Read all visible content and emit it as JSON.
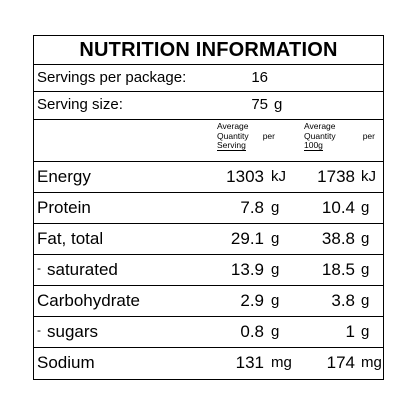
{
  "title": "NUTRITION INFORMATION",
  "servings_per_package": {
    "label": "Servings per package:",
    "value": "16"
  },
  "serving_size": {
    "label": "Serving size:",
    "value": "75",
    "unit": "g"
  },
  "columns": {
    "per_serving": {
      "line1": "Average",
      "line2": "Quantity",
      "per": "per",
      "line3": "Serving"
    },
    "per_100g": {
      "line1": "Average",
      "line2": "Quantity",
      "per": "per",
      "line3": "100g"
    }
  },
  "rows": [
    {
      "label": "Energy",
      "sub": false,
      "serving": "1303",
      "serving_unit": "kJ",
      "per100": "1738",
      "per100_unit": "kJ"
    },
    {
      "label": "Protein",
      "sub": false,
      "serving": "7.8",
      "serving_unit": "g",
      "per100": "10.4",
      "per100_unit": "g"
    },
    {
      "label": "Fat, total",
      "sub": false,
      "serving": "29.1",
      "serving_unit": "g",
      "per100": "38.8",
      "per100_unit": "g"
    },
    {
      "label": "saturated",
      "sub": true,
      "serving": "13.9",
      "serving_unit": "g",
      "per100": "18.5",
      "per100_unit": "g"
    },
    {
      "label": "Carbohydrate",
      "sub": false,
      "serving": "2.9",
      "serving_unit": "g",
      "per100": "3.8",
      "per100_unit": "g"
    },
    {
      "label": "sugars",
      "sub": true,
      "serving": "0.8",
      "serving_unit": "g",
      "per100": "1",
      "per100_unit": "g"
    },
    {
      "label": "Sodium",
      "sub": false,
      "serving": "131",
      "serving_unit": "mg",
      "per100": "174",
      "per100_unit": "mg"
    }
  ]
}
